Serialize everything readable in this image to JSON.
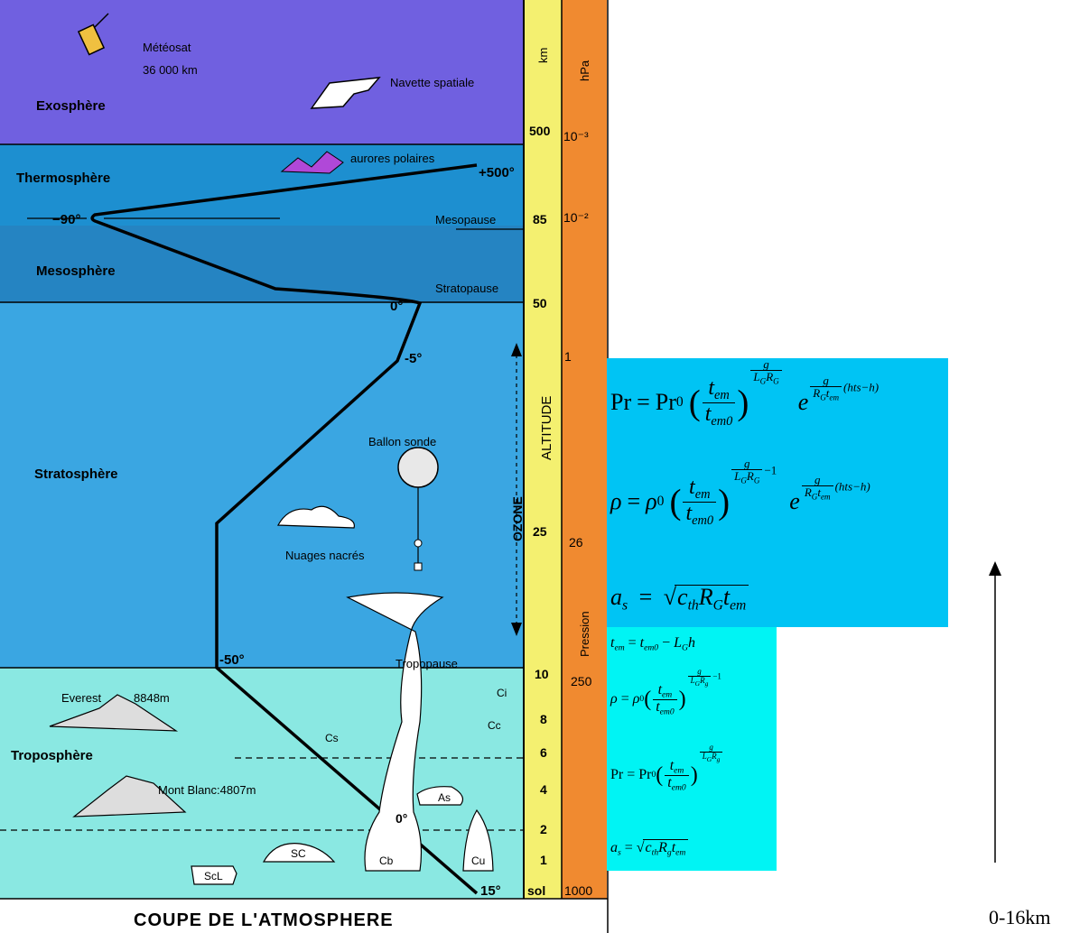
{
  "diagram": {
    "title": "COUPE DE L'ATMOSPHERE",
    "layers": {
      "exosphere": "Exosphère",
      "thermosphere": "Thermosphère",
      "mesosphere": "Mesosphère",
      "stratosphere": "Stratosphère",
      "troposphere": "Troposphère"
    },
    "objects": {
      "meteosat": "Météosat",
      "meteosat_alt": "36 000 km",
      "shuttle": "Navette spatiale",
      "aurora": "aurores polaires",
      "balloon": "Ballon sonde",
      "nacre": "Nuages nacrés",
      "everest": "Everest",
      "everest_alt": "8848m",
      "mont_blanc": "Mont Blanc:4807m",
      "ozone": "OZONE",
      "altitude": "ALTITUDE"
    },
    "boundaries": {
      "mesopause": "Mesopause",
      "stratopause": "Stratopause",
      "tropopause": "Tropopause"
    },
    "temps": {
      "t500": "+500°",
      "tm90": "−90°",
      "t0a": "0°",
      "tm5": "-5°",
      "tm50": "-50°",
      "t0b": "0°",
      "t15": "15°"
    },
    "clouds": {
      "ci": "Ci",
      "cc": "Cc",
      "cs": "Cs",
      "as": "As",
      "cb": "Cb",
      "cu": "Cu",
      "sc": "SC",
      "scl": "ScL"
    },
    "km_header": "km",
    "km_ticks": [
      "500",
      "85",
      "50",
      "25",
      "10",
      "8",
      "6",
      "4",
      "2",
      "1",
      "sol"
    ],
    "hpa_header": "hPa",
    "hpa_ticks": [
      "10⁻³",
      "10⁻²",
      "1",
      "26",
      "250",
      "1000"
    ],
    "pression": "Pression"
  },
  "formulas_upper": {
    "pr": "Pr",
    "pr0": "Pr",
    "rho": "ρ",
    "as": "a"
  },
  "formulas_lower": {
    "tem": "t",
    "rho": "ρ",
    "pr": "Pr",
    "as": "a"
  },
  "axis": {
    "label": "0-16km"
  },
  "colors": {
    "exosphere": "#7060e0",
    "thermosphere": "#1d8fd0",
    "mesosphere": "#2584c2",
    "stratosphere": "#3aa6e2",
    "troposphere": "#8ae8e2",
    "km_bar": "#f4f070",
    "hpa_bar": "#f08a30",
    "formula_upper_bg": "#00c4f4",
    "formula_lower_bg": "#00f4f4"
  }
}
